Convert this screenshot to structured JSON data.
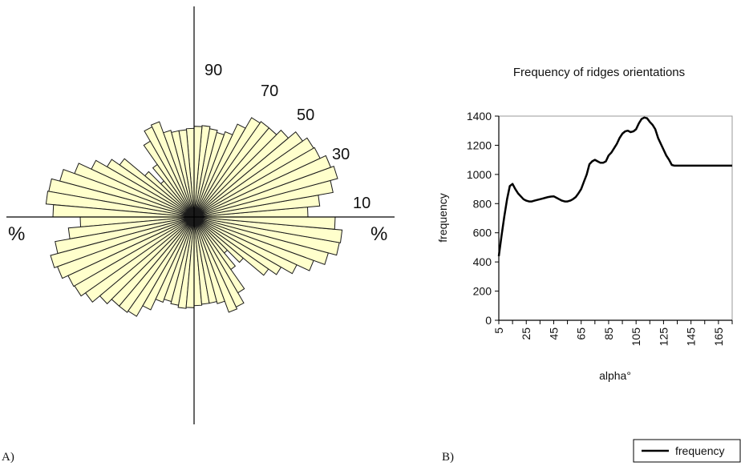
{
  "panel_labels": {
    "a": "A)",
    "b": "B)"
  },
  "chart_data": [
    {
      "type": "rose",
      "title": "",
      "petal_fill": "#ffffcc",
      "petal_stroke": "#1a1a1a",
      "sector_angle_deg": 5,
      "orientation_start_deg": 0,
      "orientation_end_deg": 180,
      "magnitude_range": [
        0,
        1425
      ],
      "values": [
        1065,
        1180,
        1320,
        1390,
        1360,
        1300,
        1290,
        1240,
        1150,
        1090,
        1090,
        1075,
        960,
        850,
        820,
        840,
        860,
        850,
        830,
        820,
        820,
        840,
        950,
        930,
        820,
        600,
        440,
        600,
        850,
        940,
        1060,
        1190,
        1300,
        1380,
        1390,
        1320
      ],
      "ring_labels": [
        "10",
        "30",
        "50",
        "70",
        "90"
      ],
      "axis_labels": {
        "left": "%",
        "right": "%"
      }
    },
    {
      "type": "line",
      "title": "Frequency of ridges orientations",
      "xlabel": "alpha°",
      "ylabel": "frequency",
      "xlim": [
        5,
        175
      ],
      "ylim": [
        0,
        1400
      ],
      "yticks": [
        0,
        200,
        400,
        600,
        800,
        1000,
        1200,
        1400
      ],
      "xtick_labels": [
        "5",
        "25",
        "45",
        "65",
        "85",
        "105",
        "125",
        "145",
        "165"
      ],
      "xtick_values": [
        5,
        25,
        45,
        65,
        85,
        105,
        125,
        145,
        165
      ],
      "grid": false,
      "legend": {
        "position": "bottom-right",
        "entries": [
          "frequency"
        ]
      },
      "series": [
        {
          "name": "frequency",
          "color": "#000000",
          "x": [
            5,
            7,
            9,
            11,
            13,
            15,
            17,
            19,
            21,
            23,
            25,
            27,
            29,
            31,
            33,
            35,
            37,
            39,
            41,
            43,
            45,
            47,
            49,
            51,
            53,
            55,
            57,
            59,
            61,
            63,
            65,
            67,
            69,
            71,
            73,
            75,
            77,
            79,
            81,
            83,
            85,
            87,
            89,
            91,
            93,
            95,
            97,
            99,
            101,
            103,
            105,
            107,
            109,
            111,
            113,
            115,
            117,
            119,
            121,
            123,
            125,
            127,
            129,
            131,
            133,
            135,
            137,
            139,
            141,
            143,
            145,
            147,
            149,
            151,
            153,
            155,
            157,
            159,
            161,
            163,
            165,
            167,
            169,
            171,
            173,
            175
          ],
          "y": [
            440,
            580,
            710,
            830,
            920,
            935,
            900,
            870,
            850,
            830,
            820,
            815,
            815,
            820,
            825,
            830,
            835,
            840,
            845,
            848,
            850,
            840,
            830,
            820,
            815,
            815,
            820,
            830,
            845,
            870,
            900,
            950,
            1000,
            1070,
            1090,
            1100,
            1090,
            1080,
            1080,
            1090,
            1130,
            1150,
            1180,
            1210,
            1250,
            1280,
            1295,
            1300,
            1290,
            1295,
            1310,
            1350,
            1380,
            1390,
            1385,
            1360,
            1340,
            1310,
            1250,
            1210,
            1170,
            1130,
            1100,
            1065,
            1060,
            1060,
            1060,
            1060,
            1060,
            1060,
            1060,
            1060,
            1060,
            1060,
            1060,
            1060,
            1060,
            1060,
            1060,
            1060,
            1060,
            1060,
            1060,
            1060,
            1060,
            1060
          ]
        }
      ]
    }
  ]
}
